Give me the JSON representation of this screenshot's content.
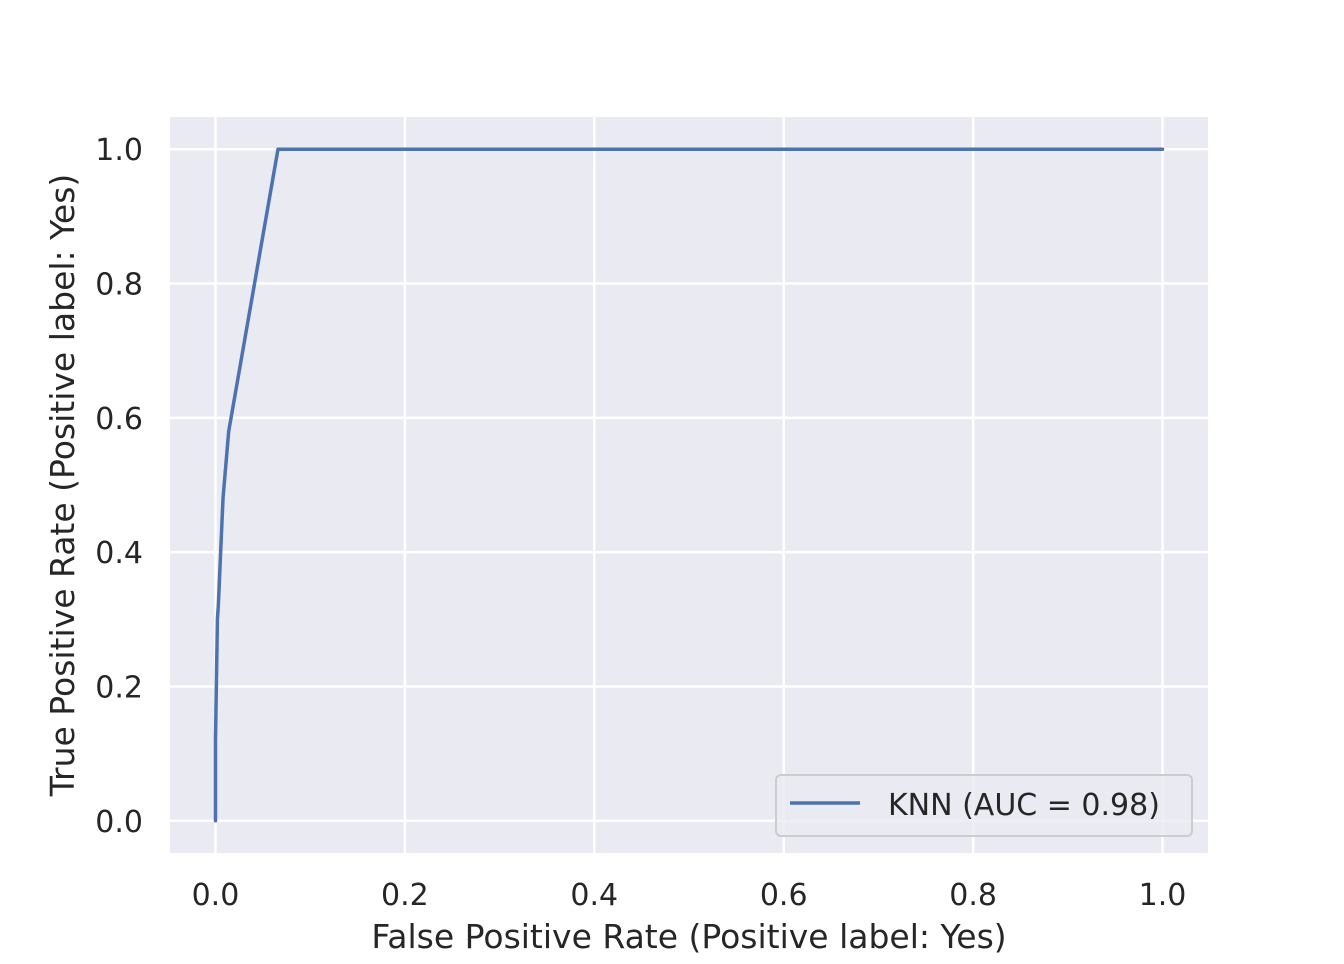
{
  "chart_data": {
    "type": "line",
    "title": "",
    "xlabel": "False Positive Rate (Positive label: Yes)",
    "ylabel": "True Positive Rate (Positive label: Yes)",
    "xlim": [
      -0.048,
      1.048
    ],
    "ylim": [
      -0.048,
      1.048
    ],
    "xticks": [
      0.0,
      0.2,
      0.4,
      0.6,
      0.8,
      1.0
    ],
    "yticks": [
      0.0,
      0.2,
      0.4,
      0.6,
      0.8,
      1.0
    ],
    "xtick_labels": [
      "0.0",
      "0.2",
      "0.4",
      "0.6",
      "0.8",
      "1.0"
    ],
    "ytick_labels": [
      "0.0",
      "0.2",
      "0.4",
      "0.6",
      "0.8",
      "1.0"
    ],
    "grid": true,
    "legend_position": "lower-right",
    "series": [
      {
        "name": "KNN (AUC = 0.98)",
        "color": "#4c72b0",
        "x": [
          0.0,
          0.0,
          0.002,
          0.003,
          0.008,
          0.014,
          0.066,
          1.0
        ],
        "y": [
          0.0,
          0.12,
          0.3,
          0.32,
          0.48,
          0.58,
          1.0,
          1.0
        ]
      }
    ]
  },
  "style": {
    "plot_background": "#eaeaf2",
    "grid_color": "#ffffff",
    "text_color": "#262626"
  }
}
